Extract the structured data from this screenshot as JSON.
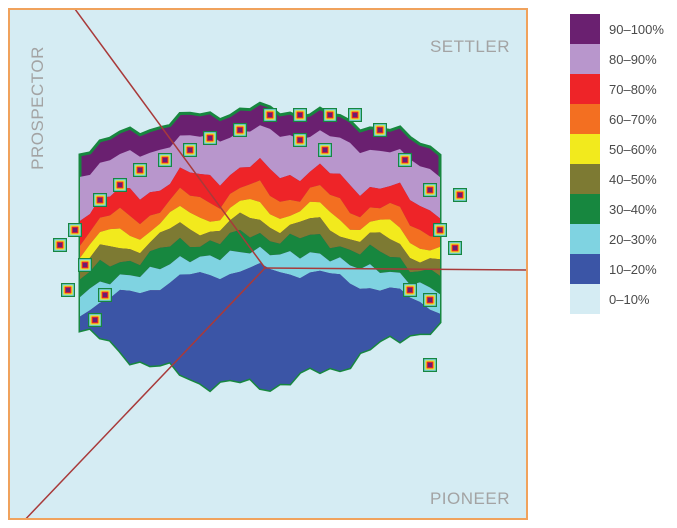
{
  "chart_data": {
    "type": "heatmap",
    "title": "",
    "xlabel": "",
    "ylabel": "",
    "region_labels": [
      "SETTLER",
      "PROSPECTOR",
      "PIONEER"
    ],
    "levels": [
      "90–100%",
      "80–90%",
      "70–80%",
      "60–70%",
      "50–60%",
      "40–50%",
      "30–40%",
      "20–30%",
      "10–20%",
      "0–10%"
    ],
    "level_colors": [
      "#6a2070",
      "#b896cc",
      "#ee2428",
      "#f36f21",
      "#f2ea1d",
      "#7d7a33",
      "#17873f",
      "#7fd3e1",
      "#3b55a6",
      "#d5ecf3"
    ],
    "background_color": "#d5ecf3",
    "frame_color": "#f0a25c",
    "divider_color": "#a83a3a",
    "legend_position": "right"
  }
}
